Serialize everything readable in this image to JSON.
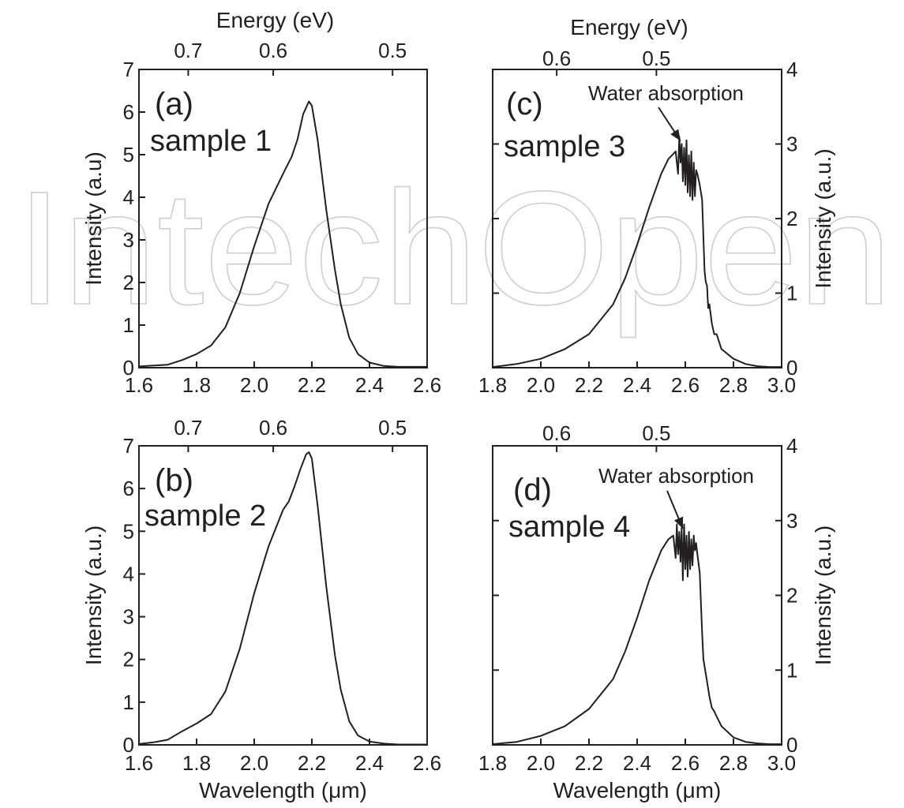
{
  "watermark": "IntechOpen",
  "chart_data": [
    {
      "type": "line",
      "panel": "(a)",
      "sample": "sample 1",
      "xlabel": "",
      "ylabel": "Intensity (a.u)",
      "top_axis_label": "Energy (eV)",
      "xlim": [
        1.6,
        2.6
      ],
      "ylim": [
        0,
        7
      ],
      "x_ticks": [
        "1.6",
        "1.8",
        "2.0",
        "2.2",
        "2.4",
        "2.6"
      ],
      "y_ticks": [
        "0",
        "1",
        "2",
        "3",
        "4",
        "5",
        "6",
        "7"
      ],
      "top_ticks": [
        {
          "label": "0.7",
          "x": 1.771
        },
        {
          "label": "0.6",
          "x": 2.066
        },
        {
          "label": "0.5",
          "x": 2.48
        }
      ],
      "annotation": null,
      "series": [
        {
          "x": [
            1.6,
            1.65,
            1.7,
            1.75,
            1.8,
            1.85,
            1.9,
            1.95,
            2.0,
            2.05,
            2.1,
            2.13,
            2.15,
            2.17,
            2.19,
            2.2,
            2.22,
            2.25,
            2.28,
            2.3,
            2.33,
            2.36,
            2.4,
            2.45,
            2.5,
            2.55,
            2.6
          ],
          "y": [
            0.03,
            0.05,
            0.07,
            0.18,
            0.32,
            0.52,
            0.95,
            1.75,
            2.85,
            3.85,
            4.55,
            4.95,
            5.35,
            5.95,
            6.25,
            6.15,
            5.35,
            3.7,
            2.3,
            1.5,
            0.7,
            0.32,
            0.12,
            0.04,
            0.02,
            0.02,
            0.02
          ]
        }
      ]
    },
    {
      "type": "line",
      "panel": "(b)",
      "sample": "sample 2",
      "xlabel": "Wavelength (μm)",
      "ylabel": "Intensity (a.u.)",
      "xlim": [
        1.6,
        2.6
      ],
      "ylim": [
        0,
        7
      ],
      "x_ticks": [
        "1.6",
        "1.8",
        "2.0",
        "2.2",
        "2.4",
        "2.6"
      ],
      "y_ticks": [
        "0",
        "1",
        "2",
        "3",
        "4",
        "5",
        "6",
        "7"
      ],
      "top_ticks": [
        {
          "label": "0.7",
          "x": 1.771
        },
        {
          "label": "0.6",
          "x": 2.066
        },
        {
          "label": "0.5",
          "x": 2.48
        }
      ],
      "annotation": null,
      "series": [
        {
          "x": [
            1.6,
            1.65,
            1.7,
            1.75,
            1.8,
            1.85,
            1.9,
            1.95,
            2.0,
            2.05,
            2.1,
            2.12,
            2.14,
            2.16,
            2.18,
            2.19,
            2.2,
            2.22,
            2.25,
            2.28,
            2.3,
            2.33,
            2.36,
            2.4,
            2.45,
            2.5,
            2.6
          ],
          "y": [
            0.02,
            0.06,
            0.12,
            0.32,
            0.5,
            0.72,
            1.25,
            2.25,
            3.55,
            4.65,
            5.5,
            5.7,
            6.05,
            6.45,
            6.8,
            6.85,
            6.7,
            5.6,
            3.7,
            2.1,
            1.3,
            0.55,
            0.22,
            0.08,
            0.03,
            0.01,
            0.01
          ]
        }
      ]
    },
    {
      "type": "line",
      "panel": "(c)",
      "sample": "sample 3",
      "xlabel": "",
      "ylabel": "Intensity (a.u.)",
      "top_axis_label": "Energy (eV)",
      "xlim": [
        1.8,
        3.0
      ],
      "ylim": [
        0,
        4
      ],
      "x_ticks": [
        "1.8",
        "2.0",
        "2.2",
        "2.4",
        "2.6",
        "2.8",
        "3.0"
      ],
      "y_ticks": [
        "0",
        "1",
        "2",
        "3",
        "4"
      ],
      "top_ticks": [
        {
          "label": "0.6",
          "x": 2.066
        },
        {
          "label": "0.5",
          "x": 2.48
        }
      ],
      "annotation": {
        "text": "Water absorption",
        "x": 2.58,
        "y": 3.0
      },
      "series": [
        {
          "x": [
            1.8,
            1.9,
            2.0,
            2.1,
            2.2,
            2.3,
            2.35,
            2.4,
            2.45,
            2.5,
            2.53,
            2.56,
            2.57,
            2.575,
            2.58,
            2.585,
            2.59,
            2.595,
            2.6,
            2.605,
            2.61,
            2.615,
            2.62,
            2.625,
            2.63,
            2.635,
            2.64,
            2.645,
            2.65,
            2.66,
            2.67,
            2.68,
            2.685,
            2.69,
            2.695,
            2.7,
            2.71,
            2.72,
            2.73,
            2.75,
            2.8,
            2.85,
            2.9,
            2.95,
            3.0
          ],
          "y": [
            0.01,
            0.05,
            0.12,
            0.25,
            0.45,
            0.85,
            1.2,
            1.65,
            2.15,
            2.6,
            2.8,
            2.9,
            2.6,
            3.1,
            2.75,
            3.0,
            2.5,
            2.95,
            2.45,
            3.05,
            2.35,
            2.85,
            2.3,
            2.9,
            2.25,
            2.75,
            2.3,
            2.65,
            2.6,
            2.45,
            2.25,
            1.3,
            1.15,
            1.1,
            0.8,
            0.85,
            0.6,
            0.45,
            0.45,
            0.25,
            0.12,
            0.05,
            0.02,
            0.01,
            0.01
          ]
        }
      ]
    },
    {
      "type": "line",
      "panel": "(d)",
      "sample": "sample 4",
      "xlabel": "Wavelength (μm)",
      "ylabel": "Intensity (a.u.)",
      "xlim": [
        1.8,
        3.0
      ],
      "ylim": [
        0,
        4
      ],
      "x_ticks": [
        "1.8",
        "2.0",
        "2.2",
        "2.4",
        "2.6",
        "2.8",
        "3.0"
      ],
      "y_ticks": [
        "0",
        "1",
        "2",
        "3",
        "4"
      ],
      "top_ticks": [
        {
          "label": "0.6",
          "x": 2.066
        },
        {
          "label": "0.5",
          "x": 2.48
        }
      ],
      "annotation": {
        "text": "Water absorption",
        "x": 2.59,
        "y": 2.85
      },
      "series": [
        {
          "x": [
            1.8,
            1.9,
            2.0,
            2.1,
            2.2,
            2.3,
            2.35,
            2.4,
            2.45,
            2.5,
            2.53,
            2.55,
            2.56,
            2.565,
            2.57,
            2.575,
            2.58,
            2.585,
            2.59,
            2.595,
            2.6,
            2.605,
            2.61,
            2.615,
            2.62,
            2.625,
            2.63,
            2.635,
            2.64,
            2.645,
            2.65,
            2.66,
            2.67,
            2.675,
            2.68,
            2.69,
            2.7,
            2.71,
            2.72,
            2.73,
            2.75,
            2.8,
            2.85,
            2.9,
            2.95,
            3.0
          ],
          "y": [
            0.01,
            0.04,
            0.12,
            0.25,
            0.48,
            0.88,
            1.25,
            1.7,
            2.2,
            2.6,
            2.75,
            2.8,
            2.5,
            2.95,
            2.55,
            2.85,
            2.45,
            2.9,
            2.2,
            2.95,
            2.35,
            2.8,
            2.25,
            2.85,
            2.35,
            2.75,
            2.4,
            2.8,
            2.6,
            2.7,
            2.55,
            2.3,
            1.5,
            1.15,
            1.05,
            0.85,
            0.65,
            0.5,
            0.45,
            0.38,
            0.25,
            0.1,
            0.04,
            0.02,
            0.01,
            0.01
          ]
        }
      ]
    }
  ]
}
